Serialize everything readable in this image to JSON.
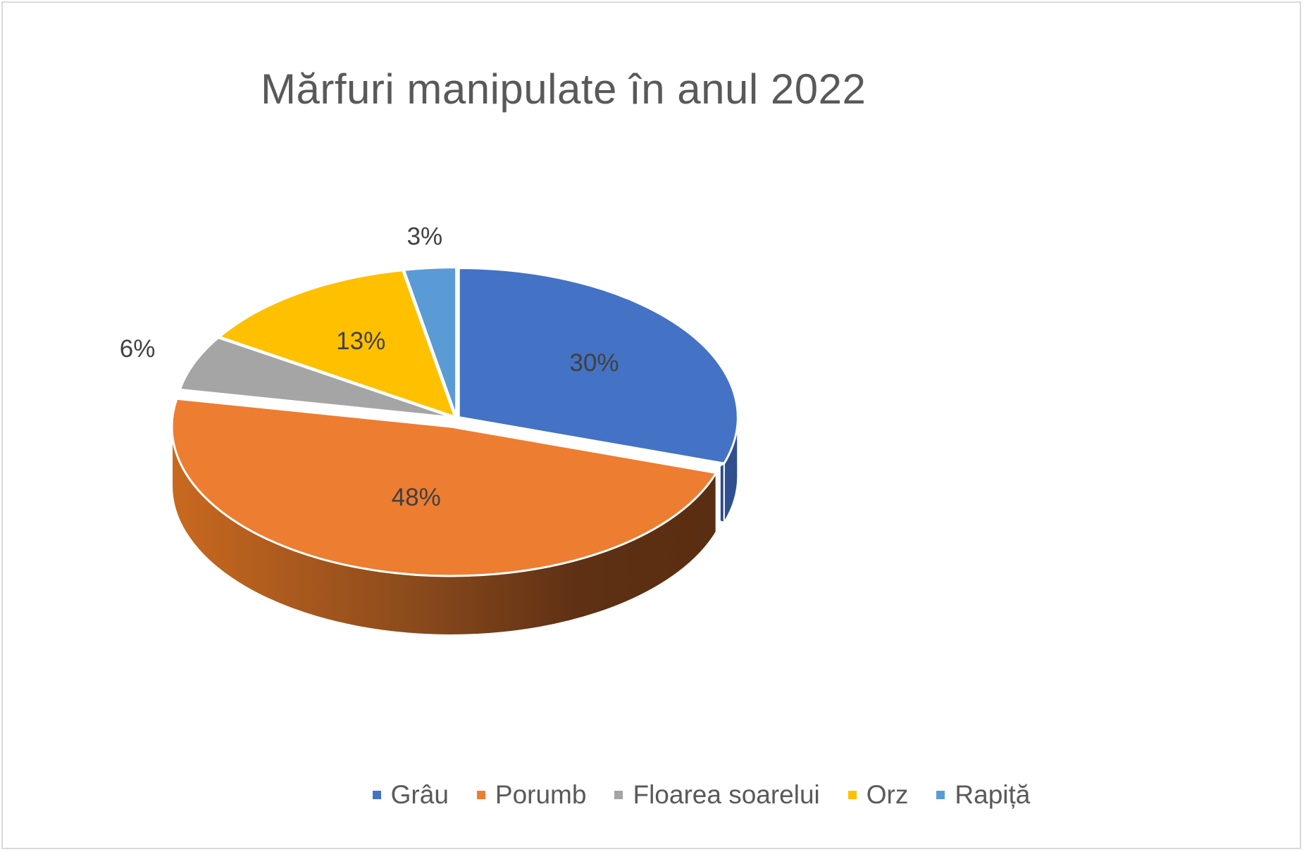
{
  "chart_data": {
    "type": "pie",
    "title": "Mărfuri manipulate în anul 2022",
    "categories": [
      "Grâu",
      "Porumb",
      "Floarea soarelui",
      "Orz",
      "Rapiță"
    ],
    "values": [
      30,
      48,
      6,
      13,
      3
    ],
    "data_labels": [
      "30%",
      "48%",
      "6%",
      "13%",
      "3%"
    ],
    "colors": [
      "#4472C4",
      "#ED7D31",
      "#A5A5A5",
      "#FFC000",
      "#5B9BD5"
    ],
    "exploded_series": "Porumb",
    "style": "3D",
    "legend_position": "bottom"
  }
}
